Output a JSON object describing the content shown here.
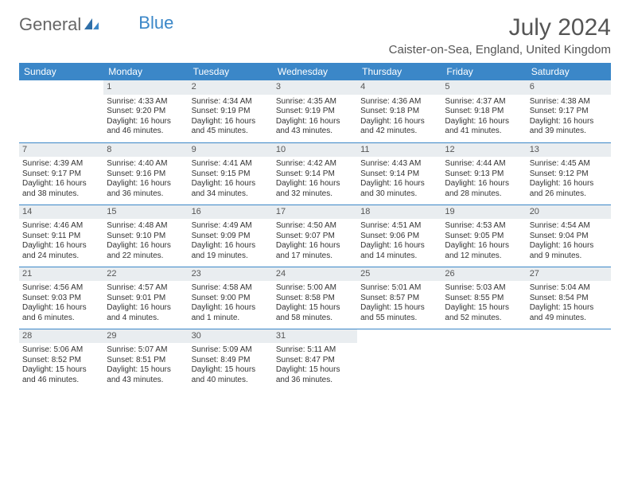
{
  "brand": {
    "part1": "General",
    "part2": "Blue"
  },
  "title": "July 2024",
  "location": "Caister-on-Sea, England, United Kingdom",
  "colors": {
    "header_bg": "#3b87c8",
    "header_text": "#ffffff",
    "daynum_bg": "#e9edf0",
    "text": "#333333",
    "title_text": "#555555",
    "row_border": "#3b87c8"
  },
  "fonts": {
    "title_size": 30,
    "location_size": 15,
    "dayheader_size": 12,
    "cell_size": 10
  },
  "day_headers": [
    "Sunday",
    "Monday",
    "Tuesday",
    "Wednesday",
    "Thursday",
    "Friday",
    "Saturday"
  ],
  "weeks": [
    [
      null,
      {
        "n": "1",
        "sr": "Sunrise: 4:33 AM",
        "ss": "Sunset: 9:20 PM",
        "dl": "Daylight: 16 hours and 46 minutes."
      },
      {
        "n": "2",
        "sr": "Sunrise: 4:34 AM",
        "ss": "Sunset: 9:19 PM",
        "dl": "Daylight: 16 hours and 45 minutes."
      },
      {
        "n": "3",
        "sr": "Sunrise: 4:35 AM",
        "ss": "Sunset: 9:19 PM",
        "dl": "Daylight: 16 hours and 43 minutes."
      },
      {
        "n": "4",
        "sr": "Sunrise: 4:36 AM",
        "ss": "Sunset: 9:18 PM",
        "dl": "Daylight: 16 hours and 42 minutes."
      },
      {
        "n": "5",
        "sr": "Sunrise: 4:37 AM",
        "ss": "Sunset: 9:18 PM",
        "dl": "Daylight: 16 hours and 41 minutes."
      },
      {
        "n": "6",
        "sr": "Sunrise: 4:38 AM",
        "ss": "Sunset: 9:17 PM",
        "dl": "Daylight: 16 hours and 39 minutes."
      }
    ],
    [
      {
        "n": "7",
        "sr": "Sunrise: 4:39 AM",
        "ss": "Sunset: 9:17 PM",
        "dl": "Daylight: 16 hours and 38 minutes."
      },
      {
        "n": "8",
        "sr": "Sunrise: 4:40 AM",
        "ss": "Sunset: 9:16 PM",
        "dl": "Daylight: 16 hours and 36 minutes."
      },
      {
        "n": "9",
        "sr": "Sunrise: 4:41 AM",
        "ss": "Sunset: 9:15 PM",
        "dl": "Daylight: 16 hours and 34 minutes."
      },
      {
        "n": "10",
        "sr": "Sunrise: 4:42 AM",
        "ss": "Sunset: 9:14 PM",
        "dl": "Daylight: 16 hours and 32 minutes."
      },
      {
        "n": "11",
        "sr": "Sunrise: 4:43 AM",
        "ss": "Sunset: 9:14 PM",
        "dl": "Daylight: 16 hours and 30 minutes."
      },
      {
        "n": "12",
        "sr": "Sunrise: 4:44 AM",
        "ss": "Sunset: 9:13 PM",
        "dl": "Daylight: 16 hours and 28 minutes."
      },
      {
        "n": "13",
        "sr": "Sunrise: 4:45 AM",
        "ss": "Sunset: 9:12 PM",
        "dl": "Daylight: 16 hours and 26 minutes."
      }
    ],
    [
      {
        "n": "14",
        "sr": "Sunrise: 4:46 AM",
        "ss": "Sunset: 9:11 PM",
        "dl": "Daylight: 16 hours and 24 minutes."
      },
      {
        "n": "15",
        "sr": "Sunrise: 4:48 AM",
        "ss": "Sunset: 9:10 PM",
        "dl": "Daylight: 16 hours and 22 minutes."
      },
      {
        "n": "16",
        "sr": "Sunrise: 4:49 AM",
        "ss": "Sunset: 9:09 PM",
        "dl": "Daylight: 16 hours and 19 minutes."
      },
      {
        "n": "17",
        "sr": "Sunrise: 4:50 AM",
        "ss": "Sunset: 9:07 PM",
        "dl": "Daylight: 16 hours and 17 minutes."
      },
      {
        "n": "18",
        "sr": "Sunrise: 4:51 AM",
        "ss": "Sunset: 9:06 PM",
        "dl": "Daylight: 16 hours and 14 minutes."
      },
      {
        "n": "19",
        "sr": "Sunrise: 4:53 AM",
        "ss": "Sunset: 9:05 PM",
        "dl": "Daylight: 16 hours and 12 minutes."
      },
      {
        "n": "20",
        "sr": "Sunrise: 4:54 AM",
        "ss": "Sunset: 9:04 PM",
        "dl": "Daylight: 16 hours and 9 minutes."
      }
    ],
    [
      {
        "n": "21",
        "sr": "Sunrise: 4:56 AM",
        "ss": "Sunset: 9:03 PM",
        "dl": "Daylight: 16 hours and 6 minutes."
      },
      {
        "n": "22",
        "sr": "Sunrise: 4:57 AM",
        "ss": "Sunset: 9:01 PM",
        "dl": "Daylight: 16 hours and 4 minutes."
      },
      {
        "n": "23",
        "sr": "Sunrise: 4:58 AM",
        "ss": "Sunset: 9:00 PM",
        "dl": "Daylight: 16 hours and 1 minute."
      },
      {
        "n": "24",
        "sr": "Sunrise: 5:00 AM",
        "ss": "Sunset: 8:58 PM",
        "dl": "Daylight: 15 hours and 58 minutes."
      },
      {
        "n": "25",
        "sr": "Sunrise: 5:01 AM",
        "ss": "Sunset: 8:57 PM",
        "dl": "Daylight: 15 hours and 55 minutes."
      },
      {
        "n": "26",
        "sr": "Sunrise: 5:03 AM",
        "ss": "Sunset: 8:55 PM",
        "dl": "Daylight: 15 hours and 52 minutes."
      },
      {
        "n": "27",
        "sr": "Sunrise: 5:04 AM",
        "ss": "Sunset: 8:54 PM",
        "dl": "Daylight: 15 hours and 49 minutes."
      }
    ],
    [
      {
        "n": "28",
        "sr": "Sunrise: 5:06 AM",
        "ss": "Sunset: 8:52 PM",
        "dl": "Daylight: 15 hours and 46 minutes."
      },
      {
        "n": "29",
        "sr": "Sunrise: 5:07 AM",
        "ss": "Sunset: 8:51 PM",
        "dl": "Daylight: 15 hours and 43 minutes."
      },
      {
        "n": "30",
        "sr": "Sunrise: 5:09 AM",
        "ss": "Sunset: 8:49 PM",
        "dl": "Daylight: 15 hours and 40 minutes."
      },
      {
        "n": "31",
        "sr": "Sunrise: 5:11 AM",
        "ss": "Sunset: 8:47 PM",
        "dl": "Daylight: 15 hours and 36 minutes."
      },
      null,
      null,
      null
    ]
  ]
}
